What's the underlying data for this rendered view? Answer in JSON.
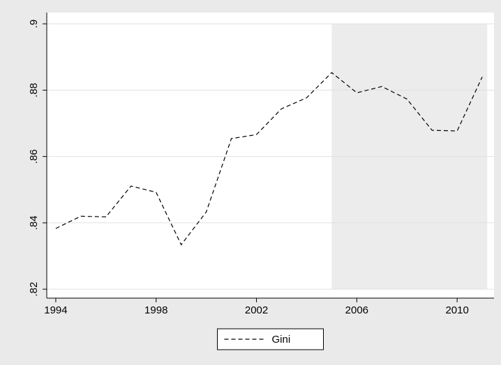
{
  "chart_data": {
    "type": "line",
    "x": [
      1994,
      1995,
      1996,
      1997,
      1998,
      1999,
      2000,
      2001,
      2002,
      2003,
      2004,
      2005,
      2006,
      2007,
      2008,
      2009,
      2010,
      2011
    ],
    "series": [
      {
        "name": "Gini",
        "color": "#000000",
        "values": [
          0.8383,
          0.842,
          0.8418,
          0.8511,
          0.8492,
          0.8334,
          0.8433,
          0.8654,
          0.8666,
          0.8744,
          0.8777,
          0.8853,
          0.8792,
          0.8811,
          0.8773,
          0.8679,
          0.8677,
          0.884
        ]
      }
    ],
    "xlim": [
      1993.64,
      2011.47
    ],
    "ylim": [
      0.8173,
      0.9034
    ],
    "xticks": [
      1994,
      1998,
      2002,
      2006,
      2010
    ],
    "yticks": [
      {
        "value": 0.82,
        "label": ".82"
      },
      {
        "value": 0.84,
        "label": ".84"
      },
      {
        "value": 0.86,
        "label": ".86"
      },
      {
        "value": 0.88,
        "label": ".88"
      },
      {
        "value": 0.9,
        "label": ".9"
      }
    ],
    "grid": true,
    "shaded_region": {
      "xlim": [
        2005,
        2011.2
      ],
      "ylim": [
        0.82,
        0.9
      ],
      "color": "#ececec"
    },
    "legend": "bottom"
  }
}
